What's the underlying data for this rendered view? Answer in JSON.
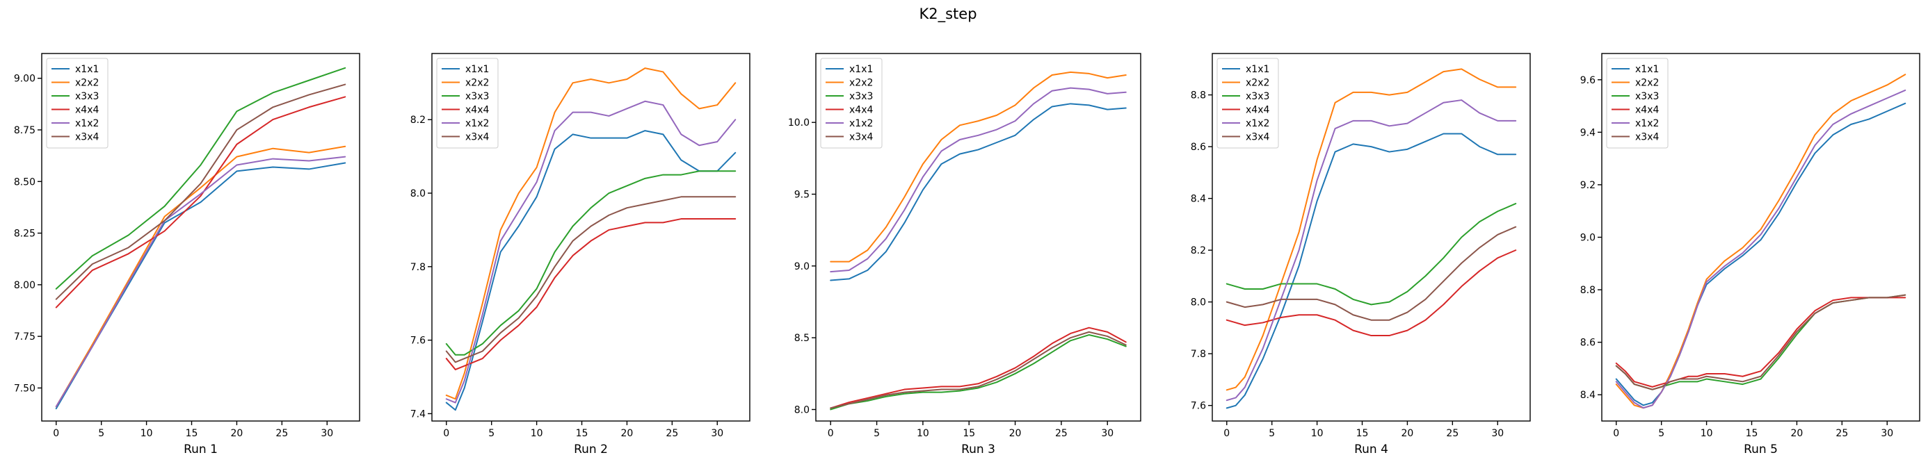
{
  "figure": {
    "suptitle": "K2_step"
  },
  "colors": {
    "x1x1": "#1f77b4",
    "x2x2": "#ff7f0e",
    "x3x3": "#2ca02c",
    "x4x4": "#d62728",
    "x1x2": "#9467bd",
    "x3x4": "#8c564b"
  },
  "chart_data": [
    {
      "type": "line",
      "xlabel": "Run 1",
      "legend_placement": "upper-left",
      "grid": false,
      "xlim": [
        -1.6,
        33.6
      ],
      "ylim": [
        7.34,
        9.12
      ],
      "xticks": [
        0,
        5,
        10,
        15,
        20,
        25,
        30
      ],
      "yticks": [
        7.5,
        7.75,
        8.0,
        8.25,
        8.5,
        8.75,
        9.0
      ],
      "ytick_decimals": 2,
      "x": [
        0,
        4,
        8,
        12,
        16,
        20,
        24,
        28,
        32
      ],
      "series": [
        {
          "name": "x1x1",
          "values": [
            7.4,
            7.7,
            8.0,
            8.3,
            8.4,
            8.55,
            8.57,
            8.56,
            8.59
          ]
        },
        {
          "name": "x2x2",
          "values": [
            7.41,
            7.71,
            8.02,
            8.33,
            8.47,
            8.62,
            8.66,
            8.64,
            8.67
          ]
        },
        {
          "name": "x3x3",
          "values": [
            7.98,
            8.14,
            8.24,
            8.38,
            8.58,
            8.84,
            8.93,
            8.99,
            9.05
          ]
        },
        {
          "name": "x4x4",
          "values": [
            7.89,
            8.07,
            8.15,
            8.26,
            8.43,
            8.68,
            8.8,
            8.86,
            8.91
          ]
        },
        {
          "name": "x1x2",
          "values": [
            7.41,
            7.7,
            8.01,
            8.31,
            8.44,
            8.58,
            8.61,
            8.6,
            8.62
          ]
        },
        {
          "name": "x3x4",
          "values": [
            7.93,
            8.1,
            8.18,
            8.31,
            8.49,
            8.75,
            8.86,
            8.92,
            8.97
          ]
        }
      ]
    },
    {
      "type": "line",
      "xlabel": "Run 2",
      "legend_placement": "upper-left",
      "grid": false,
      "xlim": [
        -1.6,
        33.6
      ],
      "ylim": [
        7.38,
        8.38
      ],
      "xticks": [
        0,
        5,
        10,
        15,
        20,
        25,
        30
      ],
      "yticks": [
        7.4,
        7.6,
        7.8,
        8.0,
        8.2
      ],
      "ytick_decimals": 1,
      "x": [
        0,
        1,
        2,
        4,
        6,
        8,
        10,
        12,
        14,
        16,
        18,
        20,
        22,
        24,
        26,
        28,
        30,
        32
      ],
      "series": [
        {
          "name": "x1x1",
          "values": [
            7.43,
            7.41,
            7.47,
            7.65,
            7.84,
            7.91,
            7.99,
            8.12,
            8.16,
            8.15,
            8.15,
            8.15,
            8.17,
            8.16,
            8.09,
            8.06,
            8.06,
            8.11
          ]
        },
        {
          "name": "x2x2",
          "values": [
            7.45,
            7.44,
            7.51,
            7.7,
            7.9,
            8.0,
            8.07,
            8.22,
            8.3,
            8.31,
            8.3,
            8.31,
            8.34,
            8.33,
            8.27,
            8.23,
            8.24,
            8.3
          ]
        },
        {
          "name": "x3x3",
          "values": [
            7.59,
            7.56,
            7.56,
            7.59,
            7.64,
            7.68,
            7.74,
            7.84,
            7.91,
            7.96,
            8.0,
            8.02,
            8.04,
            8.05,
            8.05,
            8.06,
            8.06,
            8.06
          ]
        },
        {
          "name": "x4x4",
          "values": [
            7.55,
            7.52,
            7.53,
            7.55,
            7.6,
            7.64,
            7.69,
            7.77,
            7.83,
            7.87,
            7.9,
            7.91,
            7.92,
            7.92,
            7.93,
            7.93,
            7.93,
            7.93
          ]
        },
        {
          "name": "x1x2",
          "values": [
            7.44,
            7.43,
            7.49,
            7.67,
            7.87,
            7.95,
            8.03,
            8.17,
            8.22,
            8.22,
            8.21,
            8.23,
            8.25,
            8.24,
            8.16,
            8.13,
            8.14,
            8.2
          ]
        },
        {
          "name": "x3x4",
          "values": [
            7.57,
            7.54,
            7.55,
            7.57,
            7.62,
            7.66,
            7.72,
            7.8,
            7.87,
            7.91,
            7.94,
            7.96,
            7.97,
            7.98,
            7.99,
            7.99,
            7.99,
            7.99
          ]
        }
      ]
    },
    {
      "type": "line",
      "xlabel": "Run 3",
      "legend_placement": "upper-left",
      "grid": false,
      "xlim": [
        -1.6,
        33.6
      ],
      "ylim": [
        7.92,
        10.48
      ],
      "xticks": [
        0,
        5,
        10,
        15,
        20,
        25,
        30
      ],
      "yticks": [
        8.0,
        8.5,
        9.0,
        9.5,
        10.0
      ],
      "ytick_decimals": 1,
      "x": [
        0,
        2,
        4,
        6,
        8,
        10,
        12,
        14,
        16,
        18,
        20,
        22,
        24,
        26,
        28,
        30,
        32
      ],
      "series": [
        {
          "name": "x1x1",
          "values": [
            8.9,
            8.91,
            8.97,
            9.1,
            9.3,
            9.53,
            9.71,
            9.78,
            9.81,
            9.86,
            9.91,
            10.02,
            10.11,
            10.13,
            10.12,
            10.09,
            10.1
          ]
        },
        {
          "name": "x2x2",
          "values": [
            9.03,
            9.03,
            9.11,
            9.27,
            9.48,
            9.71,
            9.88,
            9.98,
            10.01,
            10.05,
            10.12,
            10.24,
            10.33,
            10.35,
            10.34,
            10.31,
            10.33
          ]
        },
        {
          "name": "x3x3",
          "values": [
            8.0,
            8.04,
            8.06,
            8.09,
            8.11,
            8.12,
            8.12,
            8.13,
            8.15,
            8.19,
            8.25,
            8.32,
            8.4,
            8.48,
            8.52,
            8.49,
            8.44
          ]
        },
        {
          "name": "x4x4",
          "values": [
            8.01,
            8.05,
            8.08,
            8.11,
            8.14,
            8.15,
            8.16,
            8.16,
            8.18,
            8.23,
            8.29,
            8.37,
            8.46,
            8.53,
            8.57,
            8.54,
            8.47
          ]
        },
        {
          "name": "x1x2",
          "values": [
            8.96,
            8.97,
            9.05,
            9.19,
            9.39,
            9.62,
            9.8,
            9.88,
            9.91,
            9.95,
            10.01,
            10.13,
            10.22,
            10.24,
            10.23,
            10.2,
            10.21
          ]
        },
        {
          "name": "x3x4",
          "values": [
            8.01,
            8.04,
            8.07,
            8.1,
            8.12,
            8.13,
            8.14,
            8.14,
            8.16,
            8.21,
            8.27,
            8.35,
            8.43,
            8.5,
            8.54,
            8.51,
            8.45
          ]
        }
      ]
    },
    {
      "type": "line",
      "xlabel": "Run 4",
      "legend_placement": "upper-left",
      "grid": false,
      "xlim": [
        -1.6,
        33.6
      ],
      "ylim": [
        7.54,
        8.96
      ],
      "xticks": [
        0,
        5,
        10,
        15,
        20,
        25,
        30
      ],
      "yticks": [
        7.6,
        7.8,
        8.0,
        8.2,
        8.4,
        8.6,
        8.8
      ],
      "ytick_decimals": 1,
      "x": [
        0,
        1,
        2,
        4,
        6,
        8,
        10,
        12,
        14,
        16,
        18,
        20,
        22,
        24,
        26,
        28,
        30,
        32
      ],
      "series": [
        {
          "name": "x1x1",
          "values": [
            7.59,
            7.6,
            7.64,
            7.78,
            7.95,
            8.14,
            8.39,
            8.58,
            8.61,
            8.6,
            8.58,
            8.59,
            8.62,
            8.65,
            8.65,
            8.6,
            8.57,
            8.57
          ]
        },
        {
          "name": "x2x2",
          "values": [
            7.66,
            7.67,
            7.71,
            7.87,
            8.07,
            8.27,
            8.55,
            8.77,
            8.81,
            8.81,
            8.8,
            8.81,
            8.85,
            8.89,
            8.9,
            8.86,
            8.83,
            8.83
          ]
        },
        {
          "name": "x3x3",
          "values": [
            8.07,
            8.06,
            8.05,
            8.05,
            8.07,
            8.07,
            8.07,
            8.05,
            8.01,
            7.99,
            8.0,
            8.04,
            8.1,
            8.17,
            8.25,
            8.31,
            8.35,
            8.38
          ]
        },
        {
          "name": "x4x4",
          "values": [
            7.93,
            7.92,
            7.91,
            7.92,
            7.94,
            7.95,
            7.95,
            7.93,
            7.89,
            7.87,
            7.87,
            7.89,
            7.93,
            7.99,
            8.06,
            8.12,
            8.17,
            8.2
          ]
        },
        {
          "name": "x1x2",
          "values": [
            7.62,
            7.63,
            7.67,
            7.82,
            8.01,
            8.2,
            8.47,
            8.67,
            8.7,
            8.7,
            8.68,
            8.69,
            8.73,
            8.77,
            8.78,
            8.73,
            8.7,
            8.7
          ]
        },
        {
          "name": "x3x4",
          "values": [
            8.0,
            7.99,
            7.98,
            7.99,
            8.01,
            8.01,
            8.01,
            7.99,
            7.95,
            7.93,
            7.93,
            7.96,
            8.01,
            8.08,
            8.15,
            8.21,
            8.26,
            8.29
          ]
        }
      ]
    },
    {
      "type": "line",
      "xlabel": "Run 5",
      "legend_placement": "upper-left",
      "grid": false,
      "xlim": [
        -1.6,
        33.6
      ],
      "ylim": [
        8.3,
        9.7
      ],
      "xticks": [
        0,
        5,
        10,
        15,
        20,
        25,
        30
      ],
      "yticks": [
        8.4,
        8.6,
        8.8,
        9.0,
        9.2,
        9.4,
        9.6
      ],
      "ytick_decimals": 1,
      "x": [
        0,
        1,
        2,
        3,
        4,
        5,
        6,
        7,
        8,
        9,
        10,
        12,
        14,
        16,
        18,
        20,
        22,
        24,
        26,
        28,
        30,
        32
      ],
      "series": [
        {
          "name": "x1x1",
          "values": [
            8.46,
            8.42,
            8.38,
            8.36,
            8.37,
            8.41,
            8.47,
            8.55,
            8.64,
            8.74,
            8.82,
            8.88,
            8.93,
            8.99,
            9.09,
            9.21,
            9.32,
            9.39,
            9.43,
            9.45,
            9.48,
            9.51
          ]
        },
        {
          "name": "x2x2",
          "values": [
            8.44,
            8.4,
            8.36,
            8.35,
            8.36,
            8.41,
            8.48,
            8.56,
            8.65,
            8.75,
            8.84,
            8.91,
            8.96,
            9.03,
            9.14,
            9.26,
            9.39,
            9.47,
            9.52,
            9.55,
            9.58,
            9.62
          ]
        },
        {
          "name": "x3x3",
          "values": [
            8.51,
            8.48,
            8.44,
            8.43,
            8.42,
            8.43,
            8.44,
            8.45,
            8.45,
            8.45,
            8.46,
            8.45,
            8.44,
            8.46,
            8.54,
            8.63,
            8.71,
            8.75,
            8.76,
            8.77,
            8.77,
            8.78
          ]
        },
        {
          "name": "x4x4",
          "values": [
            8.52,
            8.49,
            8.45,
            8.44,
            8.43,
            8.44,
            8.45,
            8.46,
            8.47,
            8.47,
            8.48,
            8.48,
            8.47,
            8.49,
            8.56,
            8.65,
            8.72,
            8.76,
            8.77,
            8.77,
            8.77,
            8.77
          ]
        },
        {
          "name": "x1x2",
          "values": [
            8.45,
            8.41,
            8.37,
            8.35,
            8.36,
            8.41,
            8.47,
            8.55,
            8.64,
            8.74,
            8.83,
            8.89,
            8.94,
            9.01,
            9.11,
            9.23,
            9.35,
            9.43,
            9.47,
            9.5,
            9.53,
            9.56
          ]
        },
        {
          "name": "x3x4",
          "values": [
            8.51,
            8.48,
            8.44,
            8.43,
            8.42,
            8.43,
            8.45,
            8.46,
            8.46,
            8.46,
            8.47,
            8.46,
            8.45,
            8.47,
            8.55,
            8.64,
            8.71,
            8.75,
            8.76,
            8.77,
            8.77,
            8.78
          ]
        }
      ]
    }
  ]
}
